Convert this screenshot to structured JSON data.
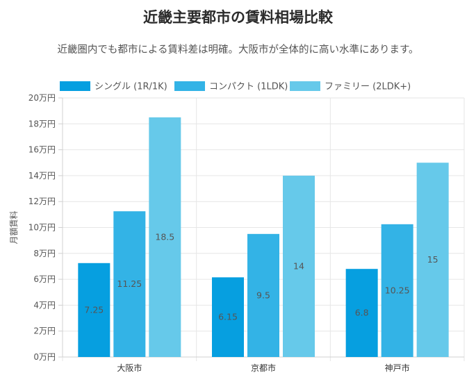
{
  "title": "近畿主要都市の賃料相場比較",
  "subtitle": "近畿圏内でも都市による賃料差は明確。大阪市が全体的に高い水準にあります。",
  "chart_data": {
    "type": "bar",
    "categories": [
      "大阪市",
      "京都市",
      "神戸市"
    ],
    "series": [
      {
        "name": "シングル (1R/1K)",
        "values": [
          7.25,
          6.15,
          6.8
        ],
        "color": "#069fe0"
      },
      {
        "name": "コンパクト (1LDK)",
        "values": [
          11.25,
          9.5,
          10.25
        ],
        "color": "#33b3e6"
      },
      {
        "name": "ファミリー (2LDK+)",
        "values": [
          18.5,
          14,
          15
        ],
        "color": "#66c9ea"
      }
    ],
    "ylabel": "月額賃料",
    "ylim": [
      0,
      20
    ],
    "yticks": [
      0,
      2,
      4,
      6,
      8,
      10,
      12,
      14,
      16,
      18,
      20
    ],
    "ytick_labels": [
      "0万円",
      "2万円",
      "4万円",
      "6万円",
      "8万円",
      "10万円",
      "12万円",
      "14万円",
      "16万円",
      "18万円",
      "20万円"
    ],
    "grid": true,
    "legend_position": "top"
  }
}
